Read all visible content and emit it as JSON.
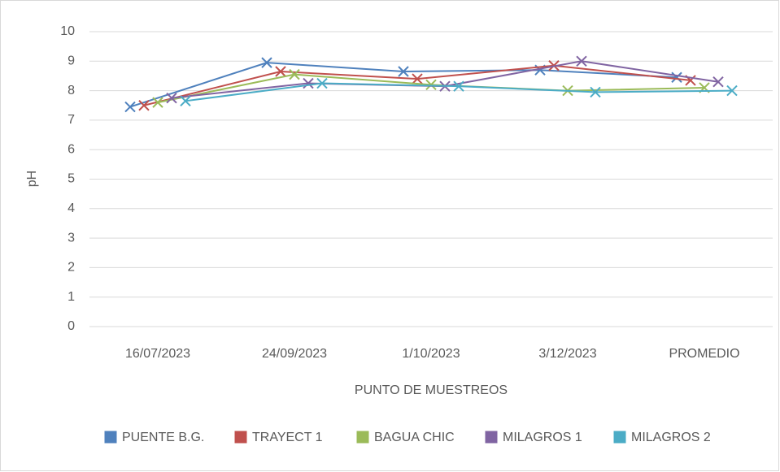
{
  "chart_data": {
    "type": "line",
    "x_label": "PUNTO DE MUESTREOS",
    "y_label": "pH",
    "categories": [
      "16/07/2023",
      "24/09/2023",
      "1/10/2023",
      "3/12/2023",
      "PROMEDIO"
    ],
    "series": [
      {
        "name": "PUENTE B.G.",
        "color": "#4f81bd",
        "values": [
          7.45,
          8.95,
          8.65,
          8.7,
          8.45
        ]
      },
      {
        "name": "TRAYECT 1",
        "color": "#c0504d",
        "values": [
          7.5,
          8.65,
          8.4,
          8.85,
          8.35
        ]
      },
      {
        "name": "BAGUA CHIC",
        "color": "#9bbb59",
        "values": [
          7.6,
          8.55,
          8.2,
          8.0,
          8.1
        ]
      },
      {
        "name": "MILAGROS 1",
        "color": "#8064a2",
        "values": [
          7.75,
          8.25,
          8.15,
          9.0,
          8.3
        ]
      },
      {
        "name": "MILAGROS 2",
        "color": "#4bacc6",
        "values": [
          7.65,
          8.25,
          8.15,
          7.95,
          8.0
        ]
      }
    ],
    "ylim": [
      0,
      10
    ],
    "yticks": [
      0,
      1,
      2,
      3,
      4,
      5,
      6,
      7,
      8,
      9,
      10
    ],
    "grid": true,
    "legend": "bottom"
  }
}
